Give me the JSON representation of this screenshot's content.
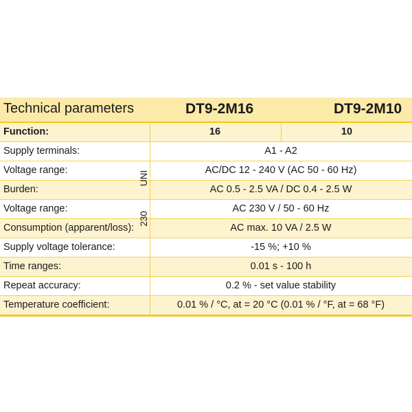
{
  "header": {
    "title": "Technical parameters",
    "model_1": "DT9-2M16",
    "model_2": "DT9-2M10"
  },
  "function_row": {
    "label": "Function:",
    "value_1": "16",
    "value_2": "10"
  },
  "side_labels": {
    "uni": "UNI",
    "v230": "230"
  },
  "rows": [
    {
      "label": "Supply terminals:",
      "value": "A1 - A2"
    },
    {
      "label": "Voltage range:",
      "value": "AC/DC 12 - 240 V (AC 50 - 60 Hz)"
    },
    {
      "label": "Burden:",
      "value": "AC 0.5 - 2.5 VA / DC 0.4 - 2.5 W"
    },
    {
      "label": "Voltage range:",
      "value": "AC 230 V / 50 - 60 Hz"
    },
    {
      "label": "Consumption (apparent/loss):",
      "value": "AC max. 10 VA / 2.5 W"
    },
    {
      "label": "Supply voltage tolerance:",
      "value": "-15 %; +10 %"
    },
    {
      "label": "Time ranges:",
      "value": "0.01 s - 100 h"
    },
    {
      "label": "Repeat accuracy:",
      "value": "0.2 % - set value stability"
    },
    {
      "label": "Temperature coefficient:",
      "value": "0.01 % / °C, at = 20 °C (0.01 % / °F, at = 68 °F)"
    }
  ],
  "colors": {
    "header_bg": "#fbeaa8",
    "shade_row": "#fdf3cf",
    "border": "#f2c811"
  }
}
